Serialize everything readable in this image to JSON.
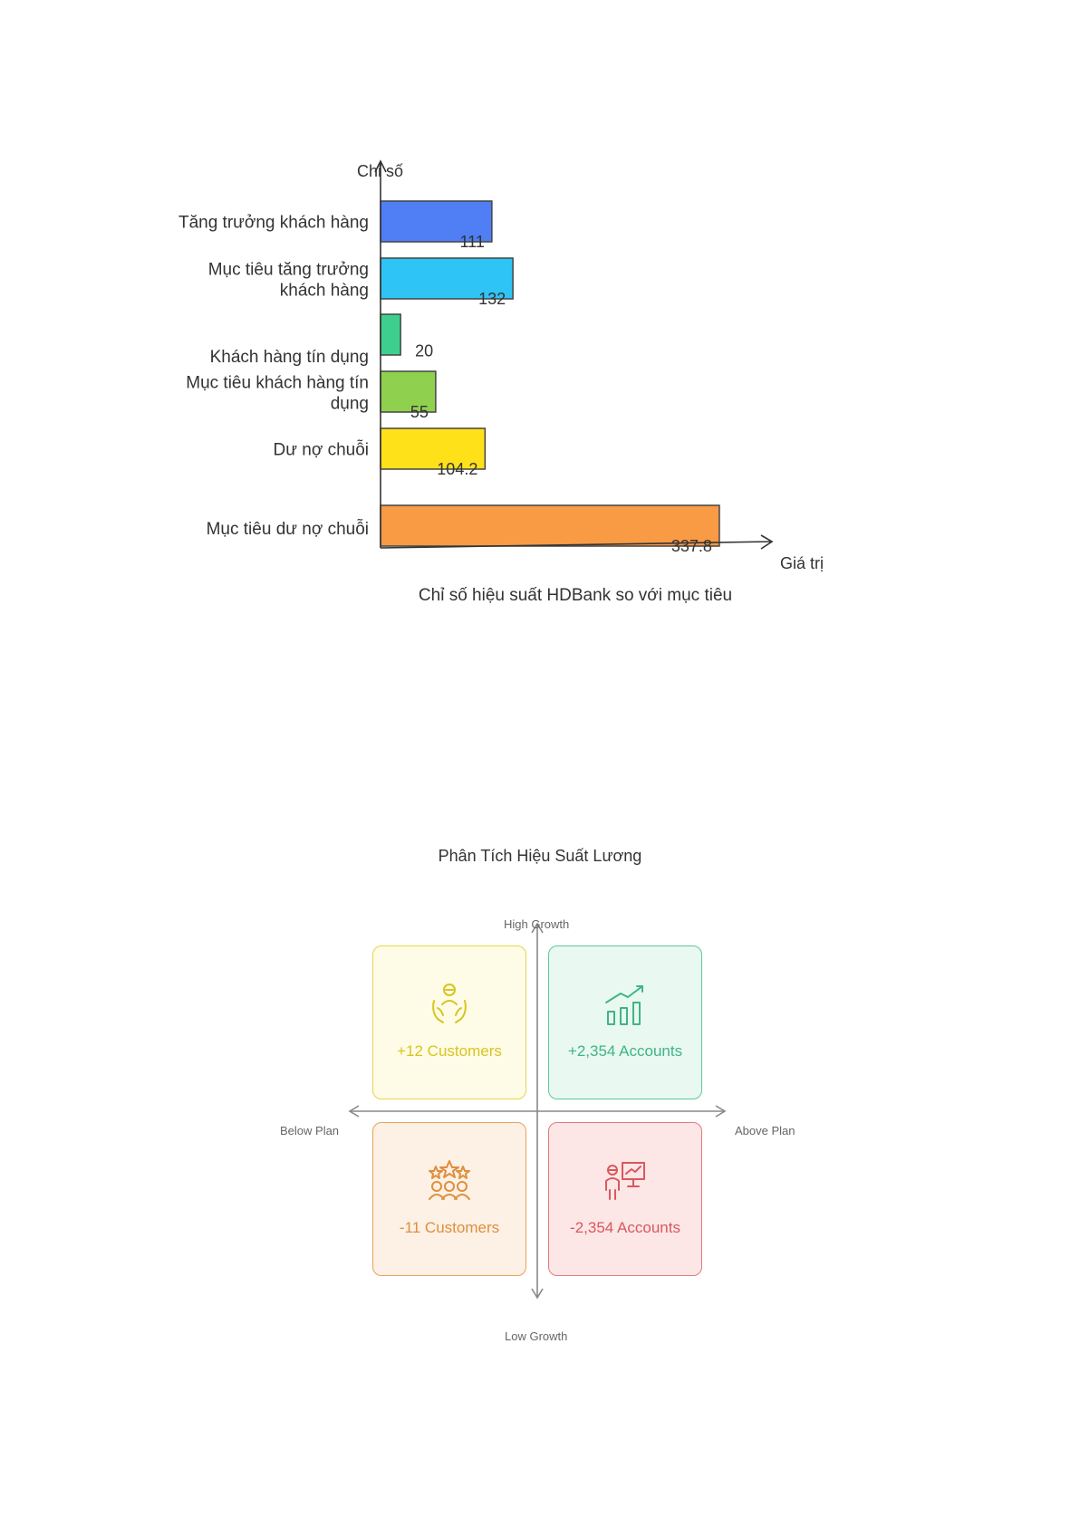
{
  "chart_data": {
    "type": "bar",
    "orientation": "horizontal",
    "title": "Chỉ số hiệu suất HDBank so với mục tiêu",
    "xlabel": "Giá trị",
    "ylabel": "Chỉ số",
    "categories": [
      "Tăng trưởng khách hàng",
      "Mục tiêu tăng trưởng khách hàng",
      "Khách hàng tín dụng",
      "Mục tiêu khách hàng tín dụng",
      "Dư nợ chuỗi",
      "Mục tiêu dư nợ chuỗi"
    ],
    "values": [
      111,
      132,
      20,
      55,
      104.2,
      337.8
    ],
    "value_labels": [
      "111",
      "132",
      "20",
      "55",
      "104.2",
      "337.8"
    ],
    "colors": [
      "#4f7ef5",
      "#2ec4f5",
      "#3ecf8e",
      "#8fd14f",
      "#ffe11a",
      "#f99a45"
    ],
    "grid": false
  },
  "matrix": {
    "title": "Phân Tích Hiệu Suất Lương",
    "axes": {
      "top": "High Growth",
      "bottom": "Low Growth",
      "left": "Below Plan",
      "right": "Above Plan"
    },
    "quadrants": [
      {
        "position": "top-left",
        "text": "+12 Customers",
        "icon": "customer-care-icon",
        "color": "#d8c51f",
        "bg": "#fefbe6"
      },
      {
        "position": "top-right",
        "text": "+2,354 Accounts",
        "icon": "growth-chart-icon",
        "color": "#3fb587",
        "bg": "#e9f8f1"
      },
      {
        "position": "bottom-left",
        "text": "-11 Customers",
        "icon": "rated-customers-icon",
        "color": "#de8f3e",
        "bg": "#fdf0e4"
      },
      {
        "position": "bottom-right",
        "text": "-2,354 Accounts",
        "icon": "presenter-icon",
        "color": "#d9585d",
        "bg": "#fce6e6"
      }
    ]
  }
}
